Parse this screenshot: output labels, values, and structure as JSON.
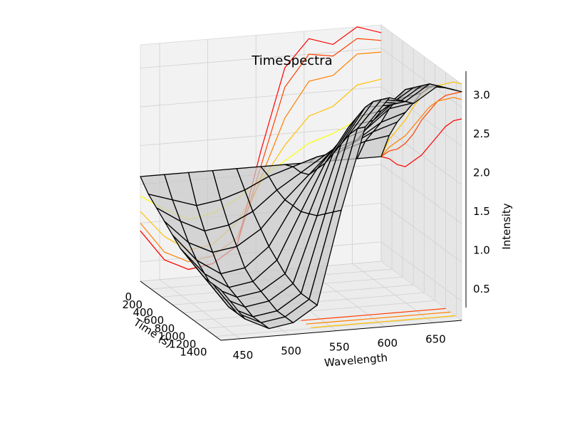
{
  "chart_data": {
    "type": "surface3d",
    "title": "TimeSpectra",
    "xlabel": "Wavelength",
    "ylabel": "Time (s)",
    "zlabel": "Intensity",
    "xlim": [
      430,
      680
    ],
    "ylim": [
      0,
      1500
    ],
    "zlim": [
      0.25,
      3.3
    ],
    "x_ticks": [
      "450",
      "500",
      "550",
      "600",
      "650"
    ],
    "y_ticks": [
      "0",
      "200",
      "400",
      "600",
      "800",
      "1000",
      "1200",
      "1400"
    ],
    "z_ticks": [
      "0.5",
      "1.0",
      "1.5",
      "2.0",
      "2.5",
      "3.0"
    ],
    "grid": true,
    "surface": {
      "wavelength": [
        430,
        455,
        480,
        505,
        530,
        555,
        580,
        605,
        630,
        655,
        680
      ],
      "time": [
        0,
        150,
        300,
        450,
        600,
        750,
        900,
        1050,
        1200,
        1350,
        1500
      ],
      "intensity": [
        [
          1.6,
          1.6,
          1.6,
          1.6,
          1.6,
          1.6,
          1.6,
          1.6,
          1.6,
          1.6,
          1.6
        ],
        [
          1.45,
          1.35,
          1.25,
          1.3,
          1.4,
          1.55,
          1.65,
          1.75,
          1.8,
          1.9,
          1.95
        ],
        [
          1.35,
          1.15,
          1.0,
          1.05,
          1.2,
          1.45,
          1.65,
          1.85,
          1.95,
          2.1,
          2.2
        ],
        [
          1.25,
          0.95,
          0.8,
          0.85,
          1.05,
          1.4,
          1.7,
          2.0,
          2.1,
          2.3,
          2.4
        ],
        [
          1.15,
          0.8,
          0.6,
          0.65,
          0.9,
          1.4,
          1.85,
          2.2,
          2.3,
          2.55,
          2.6
        ],
        [
          1.05,
          0.7,
          0.5,
          0.55,
          0.8,
          1.4,
          2.0,
          2.45,
          2.5,
          2.75,
          2.8
        ],
        [
          1.0,
          0.6,
          0.45,
          0.5,
          0.7,
          1.45,
          2.2,
          2.65,
          2.7,
          2.95,
          2.95
        ],
        [
          0.95,
          0.55,
          0.4,
          0.45,
          0.65,
          1.5,
          2.4,
          2.85,
          2.85,
          3.05,
          3.05
        ],
        [
          0.9,
          0.5,
          0.35,
          0.4,
          0.6,
          1.6,
          2.6,
          3.0,
          2.95,
          3.15,
          3.1
        ],
        [
          0.9,
          0.5,
          0.35,
          0.4,
          0.6,
          1.7,
          2.75,
          3.1,
          3.05,
          3.25,
          3.15
        ],
        [
          0.9,
          0.5,
          0.35,
          0.4,
          0.6,
          1.8,
          2.85,
          3.2,
          3.1,
          3.3,
          3.2
        ]
      ]
    },
    "projections": [
      "wall contours (time-wall, wavelength-wall, floor)"
    ],
    "colormap": [
      "#ff0000",
      "#ff4000",
      "#ff8000",
      "#ffc000",
      "#ffff00"
    ],
    "surface_color": "#c8c8c8",
    "wire_color": "#000000"
  }
}
